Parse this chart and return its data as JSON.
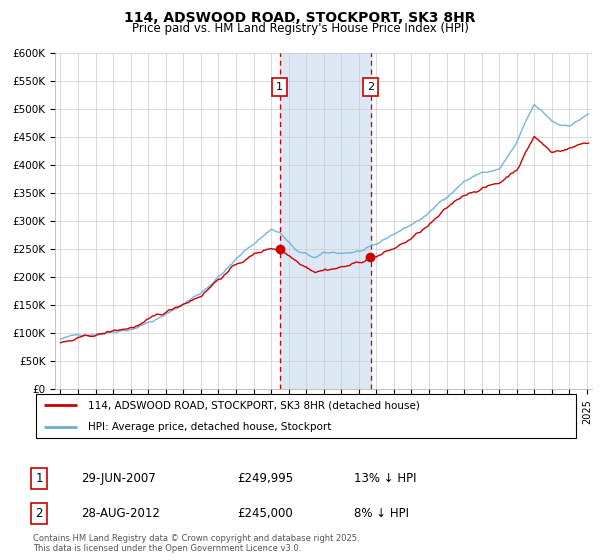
{
  "title": "114, ADSWOOD ROAD, STOCKPORT, SK3 8HR",
  "subtitle": "Price paid vs. HM Land Registry's House Price Index (HPI)",
  "ylabel_ticks": [
    "£0",
    "£50K",
    "£100K",
    "£150K",
    "£200K",
    "£250K",
    "£300K",
    "£350K",
    "£400K",
    "£450K",
    "£500K",
    "£550K",
    "£600K"
  ],
  "ylim": [
    0,
    600000
  ],
  "ytick_values": [
    0,
    50000,
    100000,
    150000,
    200000,
    250000,
    300000,
    350000,
    400000,
    450000,
    500000,
    550000,
    600000
  ],
  "hpi_color": "#6baed6",
  "price_color": "#cc0000",
  "shade_color": "#c6dbef",
  "dashed_color": "#cc0000",
  "background_color": "#ffffff",
  "grid_color": "#cccccc",
  "sale1_year": 2007.5,
  "sale1_price": 249995,
  "sale2_year": 2012.67,
  "sale2_price": 245000,
  "legend_line1": "114, ADSWOOD ROAD, STOCKPORT, SK3 8HR (detached house)",
  "legend_line2": "HPI: Average price, detached house, Stockport",
  "table_row1": [
    "1",
    "29-JUN-2007",
    "£249,995",
    "13% ↓ HPI"
  ],
  "table_row2": [
    "2",
    "28-AUG-2012",
    "£245,000",
    "8% ↓ HPI"
  ],
  "footer": "Contains HM Land Registry data © Crown copyright and database right 2025.\nThis data is licensed under the Open Government Licence v3.0."
}
